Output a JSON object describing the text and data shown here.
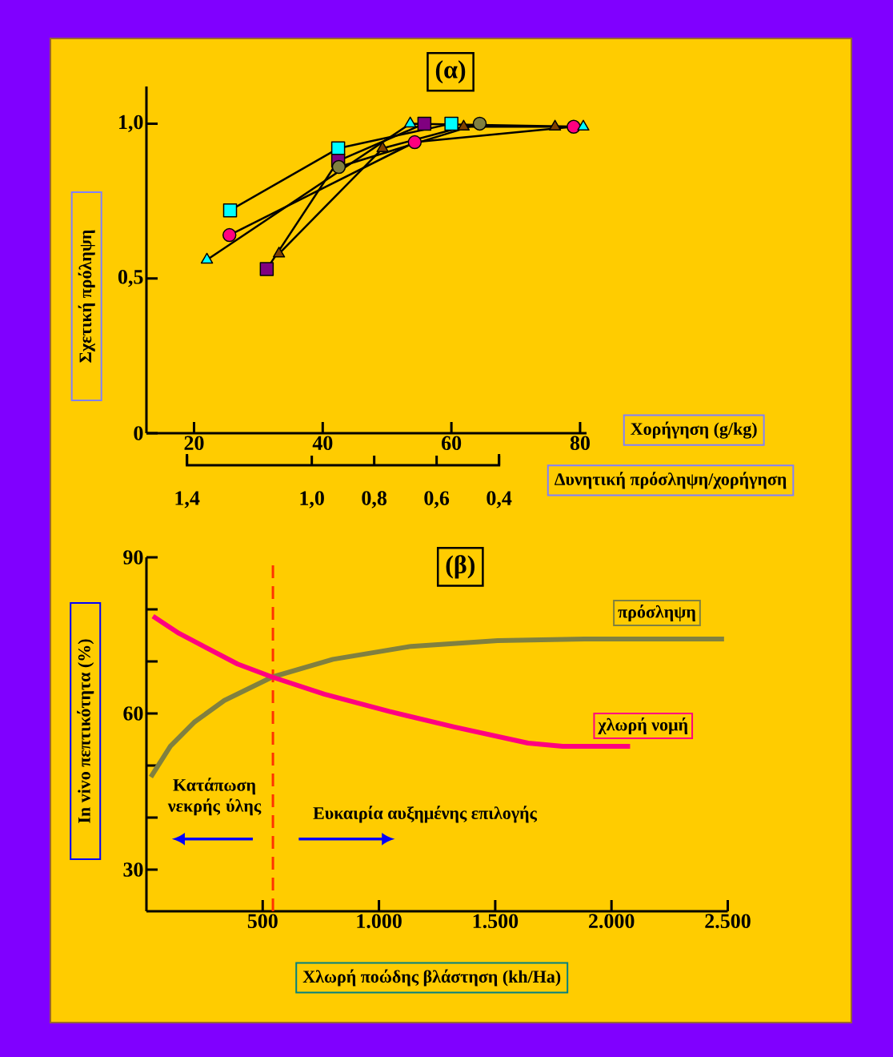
{
  "chart_data": [
    {
      "type": "line",
      "title": "(α)",
      "ylabel": "Σχετική πρόληψη",
      "xlabel": "Χορήγηση (g/kg)",
      "x2label": "Δυνητική πρόσληψη/χορήγηση",
      "xlim": [
        12.6,
        81
      ],
      "xticks": [
        20,
        40,
        60,
        80
      ],
      "ylim": [
        0,
        1.12
      ],
      "yticks": [
        0,
        {
          "value": 0.5,
          "label": "0,5"
        },
        {
          "value": 1,
          "label": "1,0"
        }
      ],
      "x2lim": [
        1.4,
        0.4
      ],
      "x2ticks": [
        {
          "value": 1.4,
          "label": "1,4"
        },
        {
          "value": 1.0,
          "label": "1,0"
        },
        {
          "value": 0.8,
          "label": "0,8"
        },
        {
          "value": 0.6,
          "label": "0,6"
        },
        {
          "value": 0.4,
          "label": "0,4"
        }
      ],
      "series": [
        {
          "color": "#00ffff",
          "marker": "square",
          "x": [
            25.6,
            42.4,
            60.0
          ],
          "values": [
            0.72,
            0.92,
            1.0
          ]
        },
        {
          "color": "#ff0080",
          "marker": "circle",
          "x": [
            25.5,
            54.3,
            79.0
          ],
          "values": [
            0.64,
            0.94,
            0.99
          ]
        },
        {
          "color": "#00ffff",
          "marker": "triangle",
          "x": [
            22.0,
            53.6,
            80.5
          ],
          "values": [
            0.56,
            1.0,
            0.99
          ]
        },
        {
          "color": "#800080",
          "marker": "square",
          "x": [
            31.3,
            42.4,
            55.8
          ],
          "values": [
            0.53,
            0.88,
            1.0
          ]
        },
        {
          "color": "#804000",
          "marker": "triangle",
          "x": [
            33.2,
            49.3,
            61.9,
            76.1
          ],
          "values": [
            0.58,
            0.92,
            0.99,
            0.99
          ]
        },
        {
          "color": "#808040",
          "marker": "circle",
          "x": [
            42.5,
            64.4
          ],
          "values": [
            0.86,
            1.0
          ]
        }
      ]
    },
    {
      "type": "line",
      "title": "(β)",
      "ylabel": "In vivo πεπτικότητα (%)",
      "xlabel": "Χλωρή ποώδης βλάστηση (kh/Ha)",
      "xlim": [
        0,
        2500
      ],
      "xticks": [
        500,
        {
          "value": 1000,
          "label": "1.000"
        },
        {
          "value": 1500,
          "label": "1.500"
        },
        {
          "value": 2000,
          "label": "2.000"
        },
        {
          "value": 2500,
          "label": "2.500"
        }
      ],
      "ylim": [
        22,
        90
      ],
      "yticks": [
        30,
        {
          "value": 40,
          "label": null
        },
        {
          "value": 50,
          "label": null
        },
        60,
        {
          "value": 70,
          "label": null
        },
        {
          "value": 80,
          "label": null
        },
        90
      ],
      "series": [
        {
          "name": "πρόσληψη",
          "color": "#808040",
          "x": [
            19,
            103,
            205,
            335,
            541,
            802,
            1138,
            1511,
            1884,
            2484
          ],
          "values": [
            47.8,
            53.7,
            58.3,
            62.5,
            67.0,
            70.4,
            72.9,
            74.0,
            74.3,
            74.3
          ]
        },
        {
          "name": "χλωρή νομή",
          "color": "#ff0080",
          "x": [
            28,
            140,
            392,
            541,
            765,
            1044,
            1324,
            1641,
            1790,
            2080
          ],
          "values": [
            78.7,
            75.4,
            69.5,
            67.0,
            63.7,
            60.4,
            57.4,
            54.3,
            53.7,
            53.7
          ]
        }
      ],
      "ref_lines": [
        {
          "axis": "x",
          "value": 544,
          "color": "#ff3300",
          "line_style": "dashed"
        }
      ],
      "annotations": [
        "Κατάπωση νεκρής ύλης",
        "Ευκαιρία αυξημένης επιλογής"
      ]
    }
  ]
}
